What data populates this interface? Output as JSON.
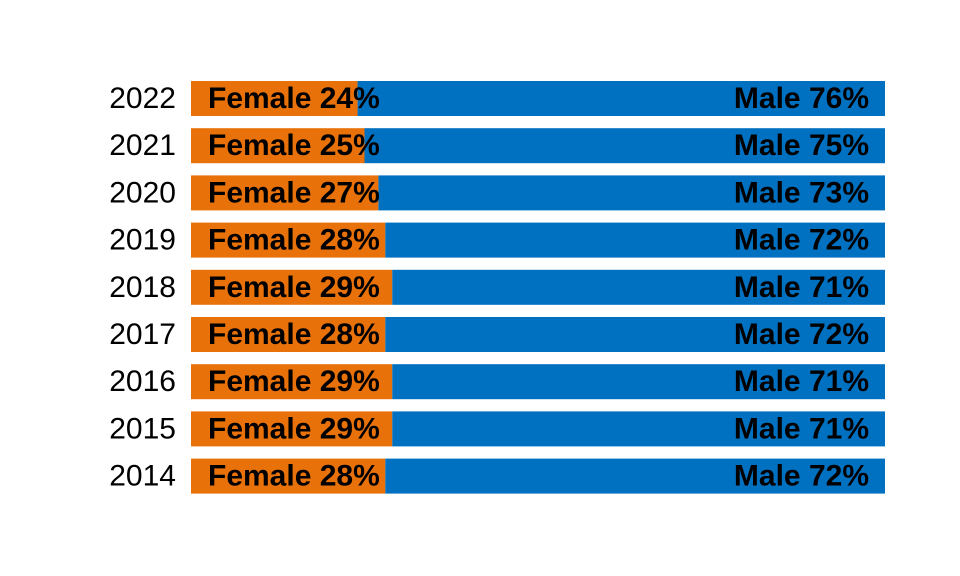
{
  "chart_data": {
    "type": "bar",
    "orientation": "horizontal",
    "stacked": true,
    "percent": true,
    "title": "",
    "xlabel": "",
    "ylabel": "",
    "xlim": [
      0,
      100
    ],
    "grid": false,
    "legend": "none",
    "categories": [
      "2022",
      "2021",
      "2020",
      "2019",
      "2018",
      "2017",
      "2016",
      "2015",
      "2014"
    ],
    "series": [
      {
        "name": "Female",
        "color": "#E8710A",
        "values": [
          24,
          25,
          27,
          28,
          29,
          28,
          29,
          29,
          28
        ],
        "labels": [
          "Female 24%",
          "Female 25%",
          "Female 27%",
          "Female 28%",
          "Female 29%",
          "Female 28%",
          "Female 29%",
          "Female 29%",
          "Female 28%"
        ]
      },
      {
        "name": "Male",
        "color": "#0070C0",
        "values": [
          76,
          75,
          73,
          72,
          71,
          72,
          71,
          71,
          72
        ],
        "labels": [
          "Male 76%",
          "Male 75%",
          "Male 73%",
          "Male 72%",
          "Male 71%",
          "Male 72%",
          "Male 71%",
          "Male 71%",
          "Male 72%"
        ]
      }
    ]
  }
}
